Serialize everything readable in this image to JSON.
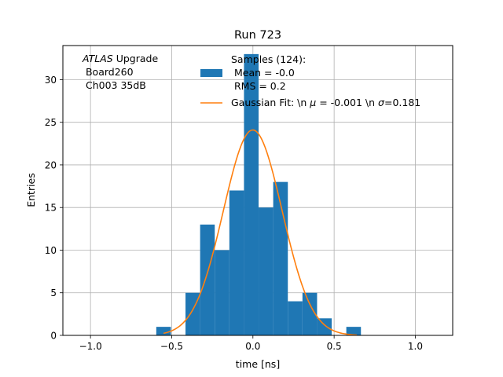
{
  "chart_data": {
    "type": "bar",
    "title": "Run 723",
    "xlabel": "time [ns]",
    "ylabel": "Entries",
    "xlim": [
      -1.17,
      1.23
    ],
    "ylim": [
      0,
      34
    ],
    "grid": true,
    "xticks": [
      -1.0,
      -0.5,
      0.0,
      0.5,
      1.0
    ],
    "xtick_labels": [
      "−1.0",
      "−0.5",
      "0.0",
      "0.5",
      "1.0"
    ],
    "yticks": [
      0,
      5,
      10,
      15,
      20,
      25,
      30
    ],
    "ytick_labels": [
      "0",
      "5",
      "10",
      "15",
      "20",
      "25",
      "30"
    ],
    "bar_width": 0.09,
    "bars": [
      {
        "x": -0.55,
        "value": 1
      },
      {
        "x": -0.37,
        "value": 5
      },
      {
        "x": -0.28,
        "value": 13
      },
      {
        "x": -0.19,
        "value": 10
      },
      {
        "x": -0.1,
        "value": 17
      },
      {
        "x": -0.01,
        "value": 33
      },
      {
        "x": 0.08,
        "value": 15
      },
      {
        "x": 0.17,
        "value": 18
      },
      {
        "x": 0.26,
        "value": 4
      },
      {
        "x": 0.35,
        "value": 5
      },
      {
        "x": 0.44,
        "value": 2
      },
      {
        "x": 0.62,
        "value": 1
      }
    ],
    "gaussian": {
      "mu": -0.001,
      "sigma": 0.181,
      "amplitude": 24.1,
      "x_range": [
        -0.55,
        0.64
      ]
    },
    "colors": {
      "bars": "#1f77b4",
      "fit": "#ff7f0e",
      "grid": "#b0b0b0"
    },
    "annotation": {
      "line1_italic": "ATLAS",
      "line1_rest": " Upgrade",
      "line2": " Board260",
      "line3": " Ch003 35dB"
    },
    "legend": {
      "placement": "top-center",
      "samples_line1": "Samples (124):",
      "samples_line2": " Mean = -0.0",
      "samples_line3": " RMS = 0.2",
      "fit_prefix": "Gaussian Fit: \\n ",
      "fit_mu_symbol": "μ",
      "fit_mid": " = -0.001 \\n ",
      "fit_sigma_symbol": "σ",
      "fit_suffix": "=0.181"
    }
  }
}
